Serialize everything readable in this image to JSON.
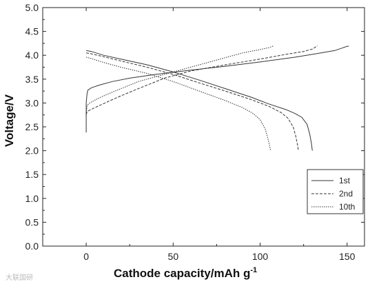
{
  "chart_data": {
    "type": "line",
    "xlabel": "Cathode capacity/mAh g",
    "xlabel_sup": "-1",
    "ylabel": "Voltage/V",
    "xlim": [
      -25,
      160
    ],
    "ylim": [
      0.0,
      5.0
    ],
    "xticks": [
      0,
      50,
      100,
      150
    ],
    "yticks": [
      "0.0",
      "0.5",
      "1.0",
      "1.5",
      "2.0",
      "2.5",
      "3.0",
      "3.5",
      "4.0",
      "4.5",
      "5.0"
    ],
    "legend_position": "right",
    "series": [
      {
        "name": "1st",
        "dash": "solid",
        "charge": [
          [
            0,
            2.38
          ],
          [
            0,
            3.0
          ],
          [
            0.5,
            3.2
          ],
          [
            1,
            3.27
          ],
          [
            3,
            3.32
          ],
          [
            8,
            3.38
          ],
          [
            15,
            3.45
          ],
          [
            25,
            3.52
          ],
          [
            40,
            3.6
          ],
          [
            60,
            3.69
          ],
          [
            80,
            3.77
          ],
          [
            100,
            3.86
          ],
          [
            120,
            3.96
          ],
          [
            135,
            4.05
          ],
          [
            143,
            4.1
          ],
          [
            147,
            4.15
          ],
          [
            150,
            4.19
          ],
          [
            151,
            4.19
          ]
        ],
        "discharge": [
          [
            0,
            4.1
          ],
          [
            3,
            4.08
          ],
          [
            10,
            4.0
          ],
          [
            20,
            3.92
          ],
          [
            35,
            3.8
          ],
          [
            50,
            3.65
          ],
          [
            65,
            3.48
          ],
          [
            80,
            3.3
          ],
          [
            95,
            3.12
          ],
          [
            105,
            2.98
          ],
          [
            115,
            2.86
          ],
          [
            120,
            2.78
          ],
          [
            124,
            2.7
          ],
          [
            127,
            2.55
          ],
          [
            128.5,
            2.35
          ],
          [
            129.5,
            2.15
          ],
          [
            130,
            2.0
          ]
        ]
      },
      {
        "name": "2nd",
        "dash": "dashed",
        "charge": [
          [
            0,
            2.76
          ],
          [
            0.5,
            2.82
          ],
          [
            2,
            2.85
          ],
          [
            6,
            2.92
          ],
          [
            12,
            3.02
          ],
          [
            20,
            3.15
          ],
          [
            30,
            3.3
          ],
          [
            45,
            3.52
          ],
          [
            60,
            3.67
          ],
          [
            80,
            3.8
          ],
          [
            100,
            3.92
          ],
          [
            115,
            4.02
          ],
          [
            125,
            4.08
          ],
          [
            130,
            4.13
          ],
          [
            133,
            4.2
          ]
        ],
        "discharge": [
          [
            0,
            4.05
          ],
          [
            3,
            4.03
          ],
          [
            10,
            3.97
          ],
          [
            20,
            3.88
          ],
          [
            35,
            3.75
          ],
          [
            50,
            3.6
          ],
          [
            65,
            3.42
          ],
          [
            80,
            3.25
          ],
          [
            95,
            3.07
          ],
          [
            105,
            2.93
          ],
          [
            112,
            2.8
          ],
          [
            116,
            2.68
          ],
          [
            119,
            2.5
          ],
          [
            120.5,
            2.3
          ],
          [
            121.5,
            2.12
          ],
          [
            122,
            2.0
          ]
        ]
      },
      {
        "name": "10th",
        "dash": "dashdot",
        "charge": [
          [
            0,
            2.75
          ],
          [
            0.5,
            2.95
          ],
          [
            2,
            3.0
          ],
          [
            6,
            3.08
          ],
          [
            12,
            3.18
          ],
          [
            20,
            3.3
          ],
          [
            30,
            3.45
          ],
          [
            45,
            3.6
          ],
          [
            60,
            3.75
          ],
          [
            75,
            3.9
          ],
          [
            90,
            4.05
          ],
          [
            100,
            4.12
          ],
          [
            105,
            4.16
          ],
          [
            108,
            4.2
          ]
        ],
        "discharge": [
          [
            0,
            3.96
          ],
          [
            3,
            3.93
          ],
          [
            10,
            3.85
          ],
          [
            20,
            3.75
          ],
          [
            35,
            3.62
          ],
          [
            50,
            3.45
          ],
          [
            65,
            3.25
          ],
          [
            80,
            3.05
          ],
          [
            90,
            2.9
          ],
          [
            96,
            2.78
          ],
          [
            100,
            2.65
          ],
          [
            103,
            2.45
          ],
          [
            104.5,
            2.25
          ],
          [
            105.5,
            2.1
          ],
          [
            106,
            2.0
          ]
        ]
      }
    ]
  },
  "watermark": "大联国研"
}
